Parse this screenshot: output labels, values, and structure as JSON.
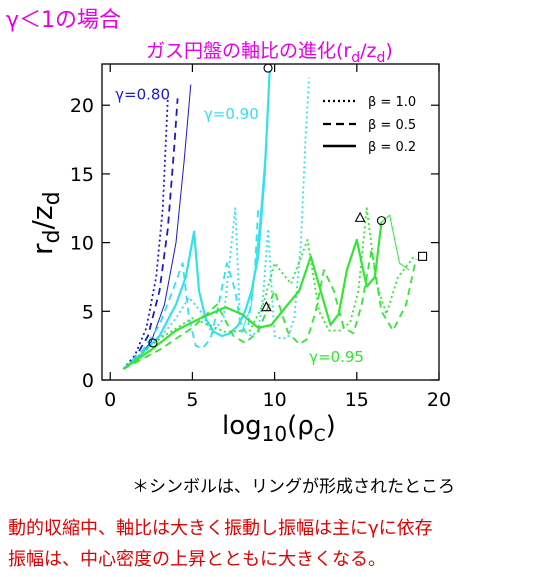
{
  "header": {
    "title": "γ＜1の場合",
    "subtitle": "ガス円盤の軸比の進化(r_d/z_d)",
    "subtitle_text": "ガス円盤の軸比の進化(r",
    "subtitle_sub1": "d",
    "subtitle_mid": "/z",
    "subtitle_sub2": "d",
    "subtitle_end": ")"
  },
  "colors": {
    "title": "#e600e6",
    "gamma_080": "#1a1acc",
    "gamma_090": "#33e0f0",
    "gamma_095": "#33e633",
    "note_red": "#e00000",
    "axis": "#000000"
  },
  "chart_data": {
    "type": "line",
    "xlabel": "log10(ρc)",
    "xlabel_main": "log",
    "xlabel_sub": "10",
    "xlabel_rest": "(ρ",
    "xlabel_sub2": "C",
    "xlabel_end": ")",
    "ylabel": "rd/zd",
    "ylabel_r": "r",
    "ylabel_sub1": "d",
    "ylabel_mid": "/z",
    "ylabel_sub2": "d",
    "xlim": [
      -0.5,
      20
    ],
    "ylim": [
      0,
      23
    ],
    "xticks": [
      0,
      5,
      10,
      15,
      20
    ],
    "yticks": [
      0,
      5,
      10,
      15,
      20
    ],
    "legend": {
      "placement": "top-right",
      "entries": [
        {
          "label": "β = 1.0",
          "style": "dotted"
        },
        {
          "label": "β = 0.5",
          "style": "dashed"
        },
        {
          "label": "β = 0.2",
          "style": "solid"
        }
      ]
    },
    "series_labels": [
      {
        "text": "γ=0.80",
        "color": "gamma_080",
        "x": 0.3,
        "y": 20.4
      },
      {
        "text": "γ=0.90",
        "color": "gamma_090",
        "x": 5.7,
        "y": 19.0
      },
      {
        "text": "γ=0.95",
        "color": "gamma_095",
        "x": 12.1,
        "y": 1.3
      }
    ],
    "series": [
      {
        "gamma": "0.80",
        "beta": "1.0",
        "style": "dotted",
        "color": "gamma_080",
        "x": [
          0.8,
          1.5,
          2.2,
          2.8,
          3.2,
          3.5
        ],
        "y": [
          0.8,
          1.8,
          3.8,
          7.5,
          12.5,
          20.5
        ]
      },
      {
        "gamma": "0.80",
        "beta": "0.5",
        "style": "dashed",
        "color": "gamma_080",
        "x": [
          0.8,
          1.5,
          2.3,
          3.0,
          3.5,
          3.9,
          4.1
        ],
        "y": [
          0.8,
          1.6,
          3.2,
          6.5,
          11.0,
          17.0,
          20.5
        ]
      },
      {
        "gamma": "0.80",
        "beta": "0.2",
        "style": "solid-thin",
        "color": "gamma_080",
        "x": [
          0.8,
          1.6,
          2.5,
          3.3,
          4.0,
          4.5,
          4.9
        ],
        "y": [
          0.8,
          1.5,
          2.8,
          5.5,
          10.0,
          16.0,
          21.5
        ]
      },
      {
        "gamma": "0.90",
        "beta": "1.0",
        "style": "dotted",
        "color": "gamma_090",
        "x": [
          0.8,
          2.0,
          3.0,
          4.0,
          4.8,
          5.5,
          6.2,
          6.9,
          7.3,
          7.6,
          7.9,
          8.2,
          8.6,
          9.0,
          9.3,
          9.6,
          10.0,
          10.4,
          10.8,
          11.2,
          11.6,
          11.9,
          12.1
        ],
        "y": [
          0.8,
          2.0,
          3.0,
          4.5,
          6.0,
          5.0,
          3.4,
          4.5,
          9.0,
          12.5,
          4.3,
          3.5,
          3.2,
          3.6,
          6.0,
          11.0,
          3.2,
          3.0,
          3.1,
          4.5,
          10.0,
          18.0,
          22.0
        ]
      },
      {
        "gamma": "0.90",
        "beta": "0.5",
        "style": "dashed",
        "color": "gamma_090",
        "x": [
          0.8,
          2.0,
          3.0,
          3.8,
          4.4,
          4.8,
          5.2,
          5.6,
          6.1,
          6.6,
          7.1,
          7.6,
          8.0,
          8.4,
          8.8,
          9.0
        ],
        "y": [
          0.8,
          2.2,
          4.0,
          6.5,
          8.5,
          4.5,
          2.5,
          2.3,
          3.0,
          5.5,
          8.5,
          6.5,
          3.5,
          4.0,
          8.0,
          12.5
        ]
      },
      {
        "gamma": "0.90",
        "beta": "0.2",
        "style": "solid",
        "color": "gamma_090",
        "x": [
          0.8,
          2.0,
          3.0,
          4.0,
          4.6,
          5.1,
          5.4,
          5.8,
          6.3,
          6.8,
          7.3,
          7.8,
          8.2,
          8.6,
          9.0,
          9.4,
          9.7
        ],
        "y": [
          0.8,
          2.0,
          3.2,
          5.5,
          7.5,
          10.8,
          6.5,
          4.5,
          3.5,
          3.2,
          3.4,
          4.0,
          5.0,
          6.5,
          9.0,
          15.0,
          22.5
        ]
      },
      {
        "gamma": "0.95",
        "beta": "1.0",
        "style": "dotted",
        "color": "gamma_095",
        "x": [
          0.8,
          3.0,
          5.0,
          7.0,
          8.5,
          9.3,
          10.0,
          11.0,
          12.0,
          12.7,
          13.3,
          14.0,
          14.6,
          15.1,
          15.6,
          16.2,
          16.8,
          17.5,
          18.5
        ],
        "y": [
          0.8,
          3.0,
          4.5,
          3.5,
          3.6,
          5.5,
          8.5,
          7.0,
          10.2,
          5.0,
          3.6,
          3.6,
          4.2,
          6.5,
          12.5,
          7.0,
          4.8,
          7.5,
          9.0
        ]
      },
      {
        "gamma": "0.95",
        "beta": "0.5",
        "style": "dashed",
        "color": "gamma_095",
        "x": [
          0.8,
          3.0,
          5.0,
          6.5,
          7.5,
          8.2,
          9.0,
          10.0,
          10.8,
          11.5,
          12.0,
          12.5,
          13.0,
          13.6,
          14.2,
          14.8,
          15.3,
          15.9,
          16.5,
          17.2,
          18.0,
          18.6
        ],
        "y": [
          0.8,
          2.2,
          3.8,
          5.5,
          3.2,
          2.7,
          3.5,
          6.5,
          3.5,
          2.6,
          3.0,
          5.0,
          8.0,
          6.5,
          3.8,
          3.4,
          5.5,
          9.5,
          5.0,
          3.6,
          5.5,
          8.8
        ]
      },
      {
        "gamma": "0.95",
        "beta": "0.2",
        "style": "solid",
        "color": "gamma_095",
        "x": [
          0.8,
          2.5,
          4.0,
          5.5,
          7.0,
          8.0,
          9.0,
          9.8,
          10.8,
          11.5,
          12.2,
          12.8,
          13.4,
          13.9,
          14.4,
          15.0,
          15.6,
          16.1,
          16.5
        ],
        "y": [
          0.8,
          2.2,
          3.6,
          4.5,
          5.3,
          4.8,
          3.8,
          4.0,
          5.5,
          6.5,
          9.0,
          6.5,
          4.0,
          4.8,
          8.0,
          10.2,
          6.8,
          7.5,
          11.5
        ]
      },
      {
        "gamma": "0.95",
        "beta": "0.2-tail",
        "style": "solid-thin",
        "color": "gamma_095",
        "x": [
          16.5,
          17.0,
          17.6,
          18.2
        ],
        "y": [
          11.5,
          12.0,
          8.5,
          8.0
        ]
      },
      {
        "gamma": "0.90",
        "beta": "0.2-thin",
        "style": "solid-thin",
        "color": "gamma_090",
        "x": [
          8.0,
          8.6,
          9.1,
          9.5
        ],
        "y": [
          3.5,
          5.5,
          11.5,
          17.5
        ]
      }
    ],
    "markers": [
      {
        "symbol": "circle",
        "x": 2.6,
        "y": 2.7
      },
      {
        "symbol": "circle",
        "x": 9.6,
        "y": 22.7
      },
      {
        "symbol": "triangle",
        "x": 9.5,
        "y": 5.3
      },
      {
        "symbol": "triangle",
        "x": 15.2,
        "y": 11.8
      },
      {
        "symbol": "circle",
        "x": 16.5,
        "y": 11.6
      },
      {
        "symbol": "square",
        "x": 19.0,
        "y": 9.0
      }
    ]
  },
  "notes": {
    "symbols": "＊シンボルは、リングが形成されたところ",
    "line1": "動的収縮中、軸比は大きく振動し振幅は主にγに依存",
    "line2": "振幅は、中心密度の上昇とともに大きくなる。"
  }
}
